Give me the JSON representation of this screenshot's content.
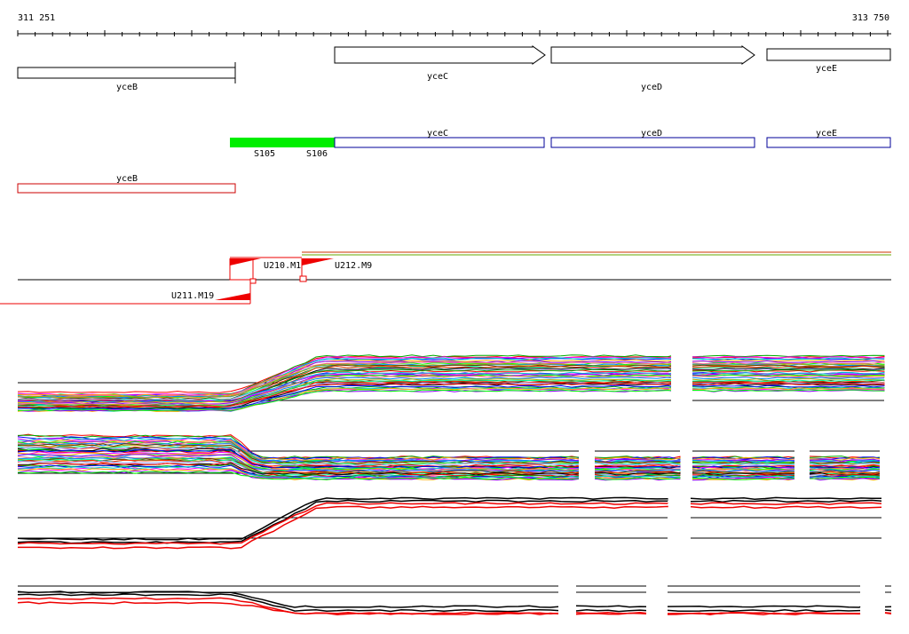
{
  "ruler": {
    "start": "311 251",
    "end": "313 750"
  },
  "colors": {
    "sense_box": "#000000",
    "antisense_box": "#cc0000",
    "transcript_box": "#000099",
    "region": "#00ee00",
    "probe": "#ee0000",
    "series_palette": [
      "#ff0000",
      "#00aa00",
      "#0000ff",
      "#ff00ff",
      "#00cccc",
      "#ffaa00",
      "#8800ff",
      "#00ff00",
      "#ff6688",
      "#0088ff",
      "#aaaa00",
      "#663300",
      "#00ff99",
      "#ff3300",
      "#9999ff",
      "#000000"
    ]
  },
  "genes_sense": [
    {
      "name": "yceB",
      "direction": "none"
    },
    {
      "name": "yceC",
      "direction": "right"
    },
    {
      "name": "yceD",
      "direction": "right"
    },
    {
      "name": "yceE",
      "direction": "none"
    }
  ],
  "regions": [
    {
      "label": "S105"
    },
    {
      "label": "S106"
    }
  ],
  "transcripts": [
    {
      "name": "yceC"
    },
    {
      "name": "yceD"
    },
    {
      "name": "yceE"
    }
  ],
  "genes_antisense": [
    {
      "name": "yceB"
    }
  ],
  "probes": [
    {
      "label": "U210.M1"
    },
    {
      "label": "U212.M9"
    },
    {
      "label": "U211.M19"
    }
  ],
  "expression_tracks": [
    {
      "id": "track-1",
      "series_count": 40,
      "trend": "step-up"
    },
    {
      "id": "track-2",
      "series_count": 40,
      "trend": "step-down"
    },
    {
      "id": "track-3",
      "series_count": 4,
      "trend": "step-up"
    },
    {
      "id": "track-4",
      "series_count": 4,
      "trend": "step-down"
    }
  ]
}
